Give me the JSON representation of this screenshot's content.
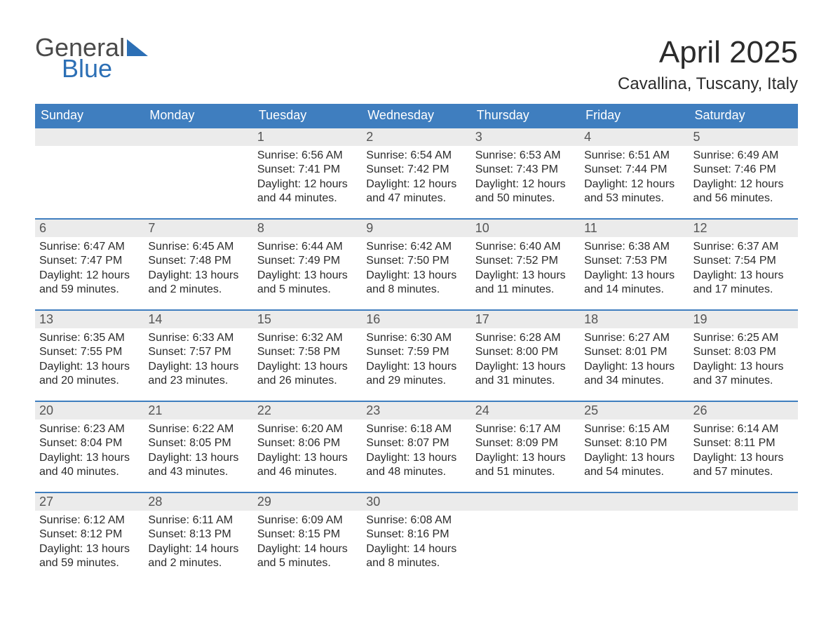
{
  "logo": {
    "word1": "General",
    "word2": "Blue",
    "color_general": "#4a4a4a",
    "color_blue": "#2c6fb5"
  },
  "title": "April 2025",
  "location": "Cavallina, Tuscany, Italy",
  "colors": {
    "header_bg": "#3f7ebf",
    "header_text": "#ffffff",
    "daynum_bg": "#ebebeb",
    "row_border": "#3f7ebf",
    "body_text": "#2b2b2b",
    "page_bg": "#ffffff"
  },
  "fonts": {
    "family": "Arial",
    "title_size_pt": 33,
    "location_size_pt": 18,
    "dow_size_pt": 14,
    "body_size_pt": 12
  },
  "calendar": {
    "type": "table",
    "days_of_week": [
      "Sunday",
      "Monday",
      "Tuesday",
      "Wednesday",
      "Thursday",
      "Friday",
      "Saturday"
    ],
    "weeks": [
      [
        null,
        null,
        {
          "n": "1",
          "sunrise": "Sunrise: 6:56 AM",
          "sunset": "Sunset: 7:41 PM",
          "day1": "Daylight: 12 hours",
          "day2": "and 44 minutes."
        },
        {
          "n": "2",
          "sunrise": "Sunrise: 6:54 AM",
          "sunset": "Sunset: 7:42 PM",
          "day1": "Daylight: 12 hours",
          "day2": "and 47 minutes."
        },
        {
          "n": "3",
          "sunrise": "Sunrise: 6:53 AM",
          "sunset": "Sunset: 7:43 PM",
          "day1": "Daylight: 12 hours",
          "day2": "and 50 minutes."
        },
        {
          "n": "4",
          "sunrise": "Sunrise: 6:51 AM",
          "sunset": "Sunset: 7:44 PM",
          "day1": "Daylight: 12 hours",
          "day2": "and 53 minutes."
        },
        {
          "n": "5",
          "sunrise": "Sunrise: 6:49 AM",
          "sunset": "Sunset: 7:46 PM",
          "day1": "Daylight: 12 hours",
          "day2": "and 56 minutes."
        }
      ],
      [
        {
          "n": "6",
          "sunrise": "Sunrise: 6:47 AM",
          "sunset": "Sunset: 7:47 PM",
          "day1": "Daylight: 12 hours",
          "day2": "and 59 minutes."
        },
        {
          "n": "7",
          "sunrise": "Sunrise: 6:45 AM",
          "sunset": "Sunset: 7:48 PM",
          "day1": "Daylight: 13 hours",
          "day2": "and 2 minutes."
        },
        {
          "n": "8",
          "sunrise": "Sunrise: 6:44 AM",
          "sunset": "Sunset: 7:49 PM",
          "day1": "Daylight: 13 hours",
          "day2": "and 5 minutes."
        },
        {
          "n": "9",
          "sunrise": "Sunrise: 6:42 AM",
          "sunset": "Sunset: 7:50 PM",
          "day1": "Daylight: 13 hours",
          "day2": "and 8 minutes."
        },
        {
          "n": "10",
          "sunrise": "Sunrise: 6:40 AM",
          "sunset": "Sunset: 7:52 PM",
          "day1": "Daylight: 13 hours",
          "day2": "and 11 minutes."
        },
        {
          "n": "11",
          "sunrise": "Sunrise: 6:38 AM",
          "sunset": "Sunset: 7:53 PM",
          "day1": "Daylight: 13 hours",
          "day2": "and 14 minutes."
        },
        {
          "n": "12",
          "sunrise": "Sunrise: 6:37 AM",
          "sunset": "Sunset: 7:54 PM",
          "day1": "Daylight: 13 hours",
          "day2": "and 17 minutes."
        }
      ],
      [
        {
          "n": "13",
          "sunrise": "Sunrise: 6:35 AM",
          "sunset": "Sunset: 7:55 PM",
          "day1": "Daylight: 13 hours",
          "day2": "and 20 minutes."
        },
        {
          "n": "14",
          "sunrise": "Sunrise: 6:33 AM",
          "sunset": "Sunset: 7:57 PM",
          "day1": "Daylight: 13 hours",
          "day2": "and 23 minutes."
        },
        {
          "n": "15",
          "sunrise": "Sunrise: 6:32 AM",
          "sunset": "Sunset: 7:58 PM",
          "day1": "Daylight: 13 hours",
          "day2": "and 26 minutes."
        },
        {
          "n": "16",
          "sunrise": "Sunrise: 6:30 AM",
          "sunset": "Sunset: 7:59 PM",
          "day1": "Daylight: 13 hours",
          "day2": "and 29 minutes."
        },
        {
          "n": "17",
          "sunrise": "Sunrise: 6:28 AM",
          "sunset": "Sunset: 8:00 PM",
          "day1": "Daylight: 13 hours",
          "day2": "and 31 minutes."
        },
        {
          "n": "18",
          "sunrise": "Sunrise: 6:27 AM",
          "sunset": "Sunset: 8:01 PM",
          "day1": "Daylight: 13 hours",
          "day2": "and 34 minutes."
        },
        {
          "n": "19",
          "sunrise": "Sunrise: 6:25 AM",
          "sunset": "Sunset: 8:03 PM",
          "day1": "Daylight: 13 hours",
          "day2": "and 37 minutes."
        }
      ],
      [
        {
          "n": "20",
          "sunrise": "Sunrise: 6:23 AM",
          "sunset": "Sunset: 8:04 PM",
          "day1": "Daylight: 13 hours",
          "day2": "and 40 minutes."
        },
        {
          "n": "21",
          "sunrise": "Sunrise: 6:22 AM",
          "sunset": "Sunset: 8:05 PM",
          "day1": "Daylight: 13 hours",
          "day2": "and 43 minutes."
        },
        {
          "n": "22",
          "sunrise": "Sunrise: 6:20 AM",
          "sunset": "Sunset: 8:06 PM",
          "day1": "Daylight: 13 hours",
          "day2": "and 46 minutes."
        },
        {
          "n": "23",
          "sunrise": "Sunrise: 6:18 AM",
          "sunset": "Sunset: 8:07 PM",
          "day1": "Daylight: 13 hours",
          "day2": "and 48 minutes."
        },
        {
          "n": "24",
          "sunrise": "Sunrise: 6:17 AM",
          "sunset": "Sunset: 8:09 PM",
          "day1": "Daylight: 13 hours",
          "day2": "and 51 minutes."
        },
        {
          "n": "25",
          "sunrise": "Sunrise: 6:15 AM",
          "sunset": "Sunset: 8:10 PM",
          "day1": "Daylight: 13 hours",
          "day2": "and 54 minutes."
        },
        {
          "n": "26",
          "sunrise": "Sunrise: 6:14 AM",
          "sunset": "Sunset: 8:11 PM",
          "day1": "Daylight: 13 hours",
          "day2": "and 57 minutes."
        }
      ],
      [
        {
          "n": "27",
          "sunrise": "Sunrise: 6:12 AM",
          "sunset": "Sunset: 8:12 PM",
          "day1": "Daylight: 13 hours",
          "day2": "and 59 minutes."
        },
        {
          "n": "28",
          "sunrise": "Sunrise: 6:11 AM",
          "sunset": "Sunset: 8:13 PM",
          "day1": "Daylight: 14 hours",
          "day2": "and 2 minutes."
        },
        {
          "n": "29",
          "sunrise": "Sunrise: 6:09 AM",
          "sunset": "Sunset: 8:15 PM",
          "day1": "Daylight: 14 hours",
          "day2": "and 5 minutes."
        },
        {
          "n": "30",
          "sunrise": "Sunrise: 6:08 AM",
          "sunset": "Sunset: 8:16 PM",
          "day1": "Daylight: 14 hours",
          "day2": "and 8 minutes."
        },
        null,
        null,
        null
      ]
    ]
  }
}
